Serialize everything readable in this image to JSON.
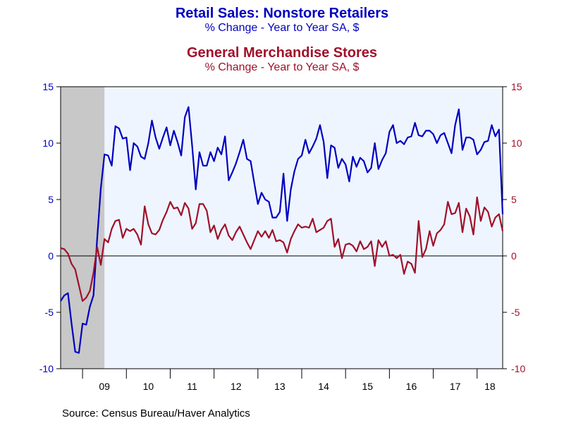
{
  "titles": {
    "series1_title": "Retail Sales: Nonstore Retailers",
    "series1_subtitle": "% Change - Year to Year    SA, $",
    "series2_title": "General Merchandise Stores",
    "series2_subtitle": "% Change - Year to Year    SA, $"
  },
  "source": "Source:  Census Bureau/Haver Analytics",
  "colors": {
    "series1": "#0000c0",
    "series2": "#a0102a",
    "plot_background": "#eef5ff",
    "recession_shade": "#c8c8c8"
  },
  "chart_data": {
    "type": "line",
    "x_start": "2008-07",
    "frequency": "monthly",
    "year_labels": [
      "09",
      "10",
      "11",
      "12",
      "13",
      "14",
      "15",
      "16",
      "17",
      "18"
    ],
    "ylim": [
      -10,
      15
    ],
    "yticks": [
      15,
      10,
      5,
      0,
      -5,
      -10
    ],
    "grid": false,
    "zero_line": true,
    "recession_band": {
      "start": "2008-07",
      "end": "2009-06"
    },
    "series": [
      {
        "name": "Retail Sales: Nonstore Retailers",
        "axis": "left",
        "values": [
          -4,
          -3.5,
          -3.3,
          -6,
          -8.5,
          -8.6,
          -6,
          -6.1,
          -4.5,
          -3.5,
          1.5,
          6,
          9,
          8.9,
          8,
          11.5,
          11.3,
          10.4,
          10.5,
          7.6,
          10,
          9.7,
          8.8,
          8.6,
          10,
          12,
          10.5,
          9.5,
          10.5,
          11.4,
          9.8,
          11.1,
          10.1,
          8.9,
          12.3,
          13.2,
          9.8,
          5.9,
          9.2,
          8,
          8,
          9.2,
          8.4,
          9.6,
          9,
          10.6,
          6.7,
          7.4,
          8.2,
          9.2,
          10.3,
          8.6,
          8.4,
          6.5,
          4.6,
          5.6,
          5,
          4.8,
          3.4,
          3.4,
          3.9,
          7.3,
          3.1,
          5.9,
          7.5,
          8.6,
          8.9,
          10.3,
          9.1,
          9.7,
          10.4,
          11.6,
          10.1,
          6.9,
          9.8,
          9.6,
          7.8,
          8.6,
          8.1,
          6.6,
          8.8,
          7.9,
          8.7,
          8.4,
          7.4,
          7.8,
          10,
          7.7,
          8.5,
          9.1,
          11,
          11.6,
          10,
          10.2,
          9.9,
          10.5,
          10.6,
          11.8,
          10.7,
          10.6,
          11.1,
          11.1,
          10.8,
          10,
          10.7,
          10.9,
          10,
          9.1,
          11.6,
          13,
          9.4,
          10.5,
          10.5,
          10.3,
          9,
          9.4,
          10.1,
          10.2,
          11.6,
          10.6,
          11.2,
          3.7
        ]
      },
      {
        "name": "General Merchandise Stores",
        "axis": "right",
        "values": [
          0.7,
          0.6,
          0.2,
          -0.7,
          -1.2,
          -2.6,
          -4,
          -3.7,
          -3.1,
          -1.5,
          0.8,
          -0.8,
          1.5,
          1.2,
          2.4,
          3.1,
          3.2,
          1.6,
          2.4,
          2.2,
          2.4,
          1.9,
          1,
          4.4,
          2.8,
          2,
          1.9,
          2.3,
          3.2,
          3.9,
          4.8,
          4.2,
          4.3,
          3.6,
          4.7,
          4.2,
          2.4,
          2.9,
          4.6,
          4.6,
          4,
          2.1,
          2.7,
          1.5,
          2.3,
          2.8,
          1.8,
          1.4,
          2.1,
          2.6,
          1.9,
          1.2,
          0.6,
          1.4,
          2.2,
          1.7,
          2.2,
          1.6,
          2.3,
          1.3,
          1.4,
          1.2,
          0.3,
          1.5,
          2.2,
          2.8,
          2.5,
          2.6,
          2.5,
          3.3,
          2.1,
          2.3,
          2.5,
          3.1,
          3.3,
          0.8,
          1.5,
          -0.2,
          1,
          1.1,
          0.9,
          0.4,
          1.3,
          0.6,
          0.8,
          1.3,
          -0.9,
          1.4,
          0.8,
          1.3,
          0,
          0.1,
          -0.2,
          0.1,
          -1.6,
          -0.5,
          -0.7,
          -1.5,
          3.1,
          -0.1,
          0.6,
          2.2,
          0.9,
          2,
          2.3,
          2.8,
          4.8,
          3.7,
          3.8,
          4.7,
          2.1,
          4.2,
          3.5,
          1.9,
          5.2,
          3.1,
          4.3,
          3.9,
          2.6,
          3.4,
          3.7,
          2.2
        ]
      }
    ]
  }
}
